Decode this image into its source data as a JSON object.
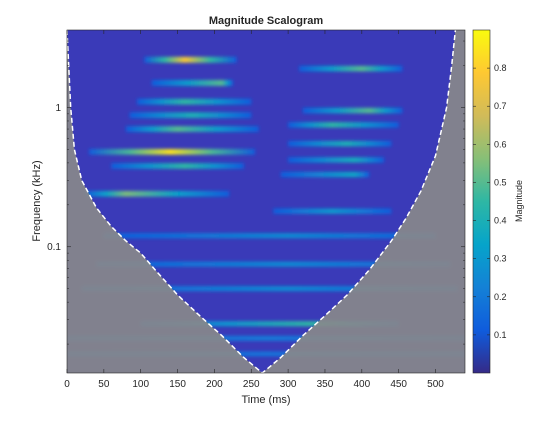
{
  "chart_data": {
    "type": "heatmap",
    "title": "Magnitude Scalogram",
    "xlabel": "Time (ms)",
    "ylabel": "Frequency (kHz)",
    "xlim": [
      0,
      540
    ],
    "x_ticks": [
      0,
      50,
      100,
      150,
      200,
      250,
      300,
      350,
      400,
      450,
      500
    ],
    "y_scale": "log",
    "ylim": [
      0.0124,
      3.6
    ],
    "y_ticks": [
      0.1,
      1
    ],
    "y_tick_labels": [
      "0.1",
      "1"
    ],
    "colorbar": {
      "label": "Magnitude",
      "range": [
        0,
        0.9
      ],
      "ticks": [
        0.1,
        0.2,
        0.3,
        0.4,
        0.5,
        0.6,
        0.7,
        0.8
      ],
      "colormap": "parula"
    },
    "cone_of_influence": {
      "style": "white dashed line, shaded outside",
      "points": [
        {
          "t": 0,
          "f": 3.6
        },
        {
          "t": 5,
          "f": 1.0
        },
        {
          "t": 10,
          "f": 0.5
        },
        {
          "t": 20,
          "f": 0.3
        },
        {
          "t": 40,
          "f": 0.19
        },
        {
          "t": 60,
          "f": 0.14
        },
        {
          "t": 80,
          "f": 0.11
        },
        {
          "t": 100,
          "f": 0.09
        },
        {
          "t": 120,
          "f": 0.068
        },
        {
          "t": 150,
          "f": 0.045
        },
        {
          "t": 180,
          "f": 0.032
        },
        {
          "t": 210,
          "f": 0.023
        },
        {
          "t": 240,
          "f": 0.016
        },
        {
          "t": 265,
          "f": 0.0124
        },
        {
          "t": 290,
          "f": 0.016
        },
        {
          "t": 320,
          "f": 0.023
        },
        {
          "t": 350,
          "f": 0.032
        },
        {
          "t": 380,
          "f": 0.045
        },
        {
          "t": 410,
          "f": 0.068
        },
        {
          "t": 440,
          "f": 0.11
        },
        {
          "t": 460,
          "f": 0.16
        },
        {
          "t": 480,
          "f": 0.25
        },
        {
          "t": 500,
          "f": 0.45
        },
        {
          "t": 515,
          "f": 1.0
        },
        {
          "t": 522,
          "f": 2.0
        },
        {
          "t": 527,
          "f": 3.6
        }
      ]
    },
    "bands": [
      {
        "t_start": 105,
        "t_end": 230,
        "f": 2.2,
        "peak_t": 160,
        "peak": 0.78
      },
      {
        "t_start": 115,
        "t_end": 225,
        "f": 1.5,
        "peak_t": 210,
        "peak": 0.5
      },
      {
        "t_start": 95,
        "t_end": 250,
        "f": 1.1,
        "peak_t": 160,
        "peak": 0.45
      },
      {
        "t_start": 85,
        "t_end": 250,
        "f": 0.88,
        "peak_t": 170,
        "peak": 0.4
      },
      {
        "t_start": 80,
        "t_end": 260,
        "f": 0.7,
        "peak_t": 150,
        "peak": 0.5
      },
      {
        "t_start": 30,
        "t_end": 255,
        "f": 0.48,
        "peak_t": 140,
        "peak": 0.85
      },
      {
        "t_start": 60,
        "t_end": 240,
        "f": 0.38,
        "peak_t": 160,
        "peak": 0.45
      },
      {
        "t_start": 25,
        "t_end": 220,
        "f": 0.24,
        "peak_t": 80,
        "peak": 0.55
      },
      {
        "t_start": 315,
        "t_end": 455,
        "f": 1.9,
        "peak_t": 400,
        "peak": 0.5
      },
      {
        "t_start": 320,
        "t_end": 455,
        "f": 0.95,
        "peak_t": 410,
        "peak": 0.5
      },
      {
        "t_start": 300,
        "t_end": 450,
        "f": 0.75,
        "peak_t": 360,
        "peak": 0.45
      },
      {
        "t_start": 300,
        "t_end": 440,
        "f": 0.55,
        "peak_t": 380,
        "peak": 0.4
      },
      {
        "t_start": 300,
        "t_end": 430,
        "f": 0.42,
        "peak_t": 390,
        "peak": 0.38
      },
      {
        "t_start": 290,
        "t_end": 410,
        "f": 0.33,
        "peak_t": 390,
        "peak": 0.35
      },
      {
        "t_start": 280,
        "t_end": 440,
        "f": 0.18,
        "peak_t": 360,
        "peak": 0.3
      },
      {
        "t_start": 50,
        "t_end": 500,
        "f": 0.12,
        "peak_t": 300,
        "peak": 0.25
      },
      {
        "t_start": 40,
        "t_end": 520,
        "f": 0.075,
        "peak_t": 300,
        "peak": 0.25
      },
      {
        "t_start": 20,
        "t_end": 530,
        "f": 0.05,
        "peak_t": 300,
        "peak": 0.25
      },
      {
        "t_start": 100,
        "t_end": 450,
        "f": 0.028,
        "peak_t": 330,
        "peak": 0.45
      },
      {
        "t_start": 0,
        "t_end": 540,
        "f": 0.022,
        "peak_t": 270,
        "peak": 0.2
      },
      {
        "t_start": 0,
        "t_end": 540,
        "f": 0.017,
        "peak_t": 270,
        "peak": 0.18
      }
    ]
  }
}
